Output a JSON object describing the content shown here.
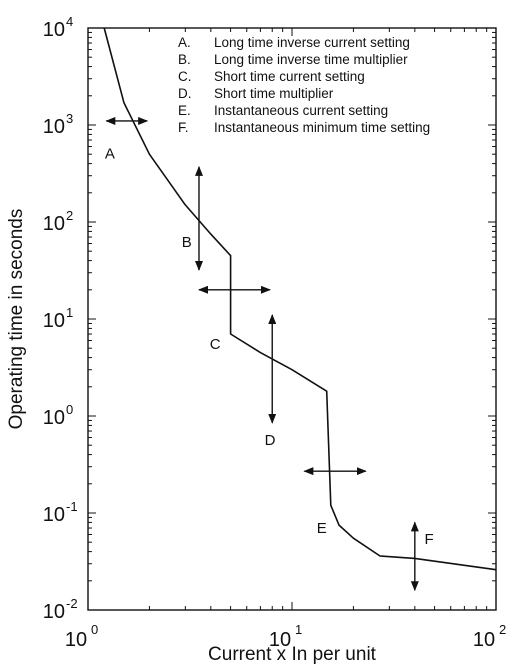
{
  "chart_data": {
    "type": "line",
    "title": "",
    "xlabel": "Current x In   per unit",
    "ylabel": "Operating time in seconds",
    "x_scale": "log",
    "y_scale": "log",
    "xlim": [
      1,
      100
    ],
    "ylim": [
      0.01,
      10000
    ],
    "grid": false,
    "x_ticks": [
      {
        "base": "10",
        "exp": "0",
        "value": 1
      },
      {
        "base": "10",
        "exp": "1",
        "value": 10
      },
      {
        "base": "10",
        "exp": "2",
        "value": 100
      }
    ],
    "y_ticks": [
      {
        "base": "10",
        "exp": "4",
        "value": 10000
      },
      {
        "base": "10",
        "exp": "3",
        "value": 1000
      },
      {
        "base": "10",
        "exp": "2",
        "value": 100
      },
      {
        "base": "10",
        "exp": "1",
        "value": 10
      },
      {
        "base": "10",
        "exp": "0",
        "value": 1
      },
      {
        "base": "10",
        "exp": "-1",
        "value": 0.1
      },
      {
        "base": "10",
        "exp": "-2",
        "value": 0.01
      }
    ],
    "series": [
      {
        "x": [
          1.2,
          1.5,
          2.0,
          3.0,
          4.0,
          5.0,
          5.0,
          7.0,
          10.0,
          14.8,
          15.5,
          17.0,
          20.0,
          27.0,
          40.0,
          100.0
        ],
        "y": [
          10000,
          1700,
          500,
          150,
          75,
          45,
          7,
          4.5,
          3.0,
          1.8,
          0.12,
          0.075,
          0.055,
          0.036,
          0.034,
          0.026
        ]
      }
    ],
    "legend": {
      "position": "top-right",
      "items": [
        {
          "key": "A.",
          "text": "Long time inverse current setting"
        },
        {
          "key": "B.",
          "text": "Long time inverse time multiplier"
        },
        {
          "key": "C.",
          "text": "Short time current setting"
        },
        {
          "key": "D.",
          "text": "Short time multiplier"
        },
        {
          "key": "E.",
          "text": "Instantaneous current setting"
        },
        {
          "key": "F.",
          "text": "Instantaneous minimum time setting"
        }
      ]
    },
    "annotations": [
      {
        "label": "A",
        "direction": "horizontal",
        "x1": 1.23,
        "x2": 1.95,
        "y": 1100,
        "label_x": 1.28,
        "label_y": 450
      },
      {
        "label": "B",
        "direction": "vertical",
        "x": 3.5,
        "y1": 370,
        "y2": 32,
        "label_x": 3.05,
        "label_y": 55
      },
      {
        "label": "C",
        "direction": "horizontal",
        "x1": 3.5,
        "x2": 7.8,
        "y": 20,
        "label_x": 4.2,
        "label_y": 4.9
      },
      {
        "label": "D",
        "direction": "vertical",
        "x": 8.0,
        "y1": 11,
        "y2": 0.85,
        "label_x": 7.8,
        "label_y": 0.5
      },
      {
        "label": "E",
        "direction": "horizontal",
        "x1": 11.5,
        "x2": 23,
        "y": 0.27,
        "label_x": 14.0,
        "label_y": 0.062
      },
      {
        "label": "F",
        "direction": "vertical",
        "x": 40,
        "y1": 0.08,
        "y2": 0.016,
        "label_x": 47,
        "label_y": 0.048
      }
    ]
  }
}
